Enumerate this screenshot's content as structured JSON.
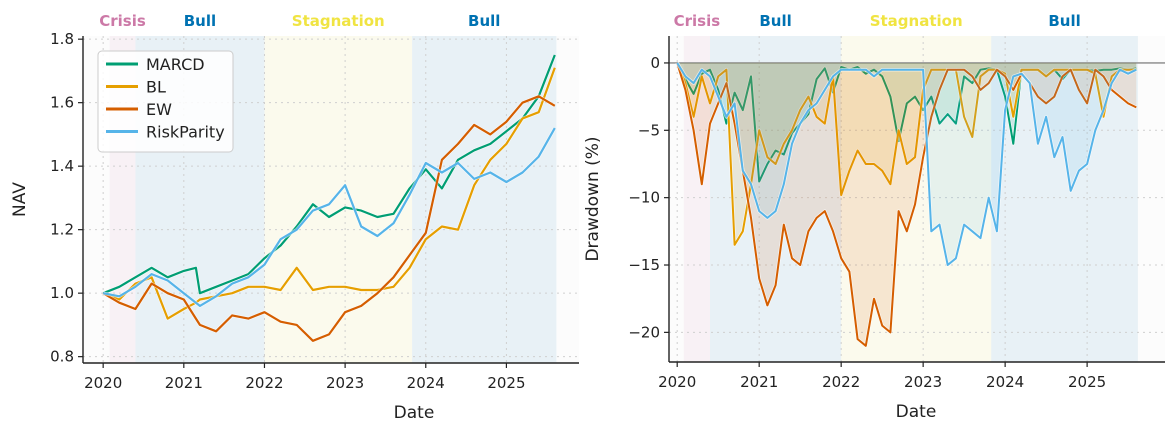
{
  "colors": {
    "MARCD": "#009e73",
    "BL": "#e69f00",
    "EW": "#d55e00",
    "RiskParity": "#56b4e9"
  },
  "regime_colors": {
    "Crisis": "#cc79a7",
    "Bull": "#0072b2",
    "Stagnation": "#f0e442"
  },
  "regimes": [
    {
      "label": "Crisis",
      "start": 2020.08,
      "end": 2020.4
    },
    {
      "label": "Bull",
      "start": 2020.4,
      "end": 2022.0
    },
    {
      "label": "Stagnation",
      "start": 2022.0,
      "end": 2023.83
    },
    {
      "label": "Bull",
      "start": 2023.83,
      "end": 2025.62
    }
  ],
  "chart_data": [
    {
      "type": "line",
      "title": "",
      "xlabel": "Date",
      "ylabel": "NAV",
      "xlim": [
        2019.75,
        2025.9
      ],
      "ylim": [
        0.78,
        1.81
      ],
      "xticks": [
        "2020",
        "2021",
        "2022",
        "2023",
        "2024",
        "2025"
      ],
      "yticks": [
        "0.8",
        "1.0",
        "1.2",
        "1.4",
        "1.6",
        "1.8"
      ],
      "grid": true,
      "legend": "top-left",
      "x": [
        2020.0,
        2020.2,
        2020.4,
        2020.6,
        2020.8,
        2021.0,
        2021.15,
        2021.2,
        2021.4,
        2021.6,
        2021.8,
        2022.0,
        2022.2,
        2022.4,
        2022.6,
        2022.8,
        2023.0,
        2023.2,
        2023.4,
        2023.6,
        2023.8,
        2024.0,
        2024.2,
        2024.4,
        2024.6,
        2024.8,
        2025.0,
        2025.2,
        2025.4,
        2025.6
      ],
      "series": [
        {
          "name": "MARCD",
          "values": [
            1.0,
            1.02,
            1.05,
            1.08,
            1.05,
            1.07,
            1.08,
            1.0,
            1.02,
            1.04,
            1.06,
            1.11,
            1.15,
            1.21,
            1.28,
            1.24,
            1.27,
            1.26,
            1.24,
            1.25,
            1.33,
            1.39,
            1.33,
            1.42,
            1.45,
            1.47,
            1.51,
            1.55,
            1.62,
            1.75
          ]
        },
        {
          "name": "BL",
          "values": [
            1.0,
            0.98,
            1.03,
            1.05,
            0.92,
            0.95,
            0.97,
            0.98,
            0.99,
            1.0,
            1.02,
            1.02,
            1.01,
            1.08,
            1.01,
            1.02,
            1.02,
            1.01,
            1.01,
            1.02,
            1.08,
            1.17,
            1.21,
            1.2,
            1.34,
            1.42,
            1.47,
            1.55,
            1.57,
            1.71
          ]
        },
        {
          "name": "EW",
          "values": [
            1.0,
            0.97,
            0.95,
            1.03,
            1.0,
            0.98,
            0.92,
            0.9,
            0.88,
            0.93,
            0.92,
            0.94,
            0.91,
            0.9,
            0.85,
            0.87,
            0.94,
            0.96,
            1.0,
            1.05,
            1.12,
            1.19,
            1.42,
            1.47,
            1.53,
            1.5,
            1.54,
            1.6,
            1.62,
            1.59
          ]
        },
        {
          "name": "RiskParity",
          "values": [
            1.0,
            0.99,
            1.02,
            1.06,
            1.04,
            1.0,
            0.97,
            0.96,
            0.99,
            1.03,
            1.05,
            1.09,
            1.17,
            1.2,
            1.26,
            1.28,
            1.34,
            1.21,
            1.18,
            1.22,
            1.31,
            1.41,
            1.38,
            1.41,
            1.36,
            1.38,
            1.35,
            1.38,
            1.43,
            1.52
          ]
        }
      ]
    },
    {
      "type": "area",
      "title": "",
      "xlabel": "Date",
      "ylabel": "Drawdown (%)",
      "xlim": [
        2019.9,
        2025.95
      ],
      "ylim": [
        -22.2,
        2.0
      ],
      "xticks": [
        "2020",
        "2021",
        "2022",
        "2023",
        "2024",
        "2025"
      ],
      "yticks": [
        "0",
        "−5",
        "−10",
        "−15",
        "−20"
      ],
      "grid": true,
      "zero_line": true,
      "x": [
        2020.0,
        2020.1,
        2020.2,
        2020.3,
        2020.4,
        2020.5,
        2020.6,
        2020.7,
        2020.8,
        2020.9,
        2021.0,
        2021.1,
        2021.2,
        2021.3,
        2021.4,
        2021.5,
        2021.6,
        2021.7,
        2021.8,
        2021.9,
        2022.0,
        2022.1,
        2022.2,
        2022.3,
        2022.4,
        2022.5,
        2022.6,
        2022.7,
        2022.8,
        2022.9,
        2023.0,
        2023.1,
        2023.2,
        2023.3,
        2023.4,
        2023.5,
        2023.6,
        2023.7,
        2023.8,
        2023.9,
        2024.0,
        2024.1,
        2024.2,
        2024.3,
        2024.4,
        2024.5,
        2024.6,
        2024.7,
        2024.8,
        2024.9,
        2025.0,
        2025.1,
        2025.2,
        2025.3,
        2025.4,
        2025.5,
        2025.6
      ],
      "series": [
        {
          "name": "MARCD",
          "values": [
            0,
            -1.2,
            -2.3,
            -0.8,
            -0.5,
            -2.0,
            -4.5,
            -2.2,
            -3.5,
            -1.0,
            -8.8,
            -7.5,
            -6.5,
            -6.8,
            -5.2,
            -4.5,
            -3.8,
            -1.2,
            -0.4,
            -2.2,
            -0.3,
            -0.5,
            -0.3,
            -0.8,
            -0.5,
            -1.0,
            -2.5,
            -5.8,
            -3.0,
            -2.5,
            -3.5,
            -2.5,
            -4.5,
            -3.8,
            -4.5,
            -1.0,
            -1.5,
            -0.5,
            -0.4,
            -0.5,
            -2.5,
            -6.0,
            -0.5,
            -0.5,
            -0.5,
            -1.0,
            -0.5,
            -1.2,
            -0.5,
            -0.5,
            -0.5,
            -0.6,
            -0.5,
            -0.5,
            -0.4,
            -0.5,
            -0.4
          ]
        },
        {
          "name": "BL",
          "values": [
            0,
            -1.5,
            -4.0,
            -1.0,
            -3.0,
            -1.0,
            -0.5,
            -13.5,
            -12.5,
            -9.0,
            -5.0,
            -7.0,
            -7.5,
            -6.0,
            -5.0,
            -3.5,
            -2.5,
            -4.0,
            -4.5,
            -1.0,
            -9.8,
            -8.0,
            -6.5,
            -7.5,
            -7.5,
            -8.0,
            -9.0,
            -5.0,
            -7.5,
            -7.0,
            -2.0,
            -0.5,
            -0.5,
            -0.5,
            -0.5,
            -4.0,
            -5.5,
            -1.0,
            -0.5,
            -0.5,
            -0.8,
            -4.0,
            -0.5,
            -0.5,
            -0.5,
            -1.0,
            -0.5,
            -0.5,
            -0.5,
            -0.5,
            -0.5,
            -0.8,
            -4.0,
            -1.0,
            -0.5,
            -0.5,
            -0.5
          ]
        },
        {
          "name": "EW",
          "values": [
            0,
            -2.0,
            -5.0,
            -9.0,
            -4.5,
            -3.0,
            -1.5,
            -4.5,
            -8.0,
            -11.5,
            -16.0,
            -18.0,
            -16.5,
            -12.0,
            -14.5,
            -15.0,
            -12.5,
            -11.5,
            -11.0,
            -12.5,
            -14.5,
            -15.5,
            -20.5,
            -21.0,
            -17.5,
            -19.5,
            -20.0,
            -11.0,
            -12.5,
            -10.5,
            -7.0,
            -4.0,
            -2.0,
            -0.5,
            -0.5,
            -0.5,
            -1.0,
            -2.0,
            -1.5,
            -0.5,
            -1.0,
            -2.0,
            -0.8,
            -1.5,
            -2.5,
            -3.0,
            -2.5,
            -1.0,
            -0.5,
            -2.0,
            -3.0,
            -0.5,
            -1.0,
            -2.0,
            -2.5,
            -3.0,
            -3.3
          ]
        },
        {
          "name": "RiskParity",
          "values": [
            0,
            -1.0,
            -1.5,
            -0.5,
            -1.0,
            -2.5,
            -4.0,
            -3.0,
            -8.0,
            -9.0,
            -11.0,
            -11.5,
            -11.0,
            -9.0,
            -6.0,
            -4.5,
            -3.5,
            -3.0,
            -2.0,
            -1.0,
            -0.5,
            -0.5,
            -0.5,
            -0.5,
            -1.0,
            -0.5,
            -0.5,
            -0.5,
            -0.5,
            -0.5,
            -0.5,
            -12.5,
            -12.0,
            -15.0,
            -14.5,
            -12.0,
            -12.5,
            -13.0,
            -10.0,
            -12.5,
            -3.5,
            -1.0,
            -0.8,
            -1.5,
            -6.0,
            -4.0,
            -7.0,
            -5.5,
            -9.5,
            -8.0,
            -7.5,
            -5.0,
            -3.5,
            -1.5,
            -0.5,
            -0.8,
            -0.5
          ]
        }
      ]
    }
  ]
}
